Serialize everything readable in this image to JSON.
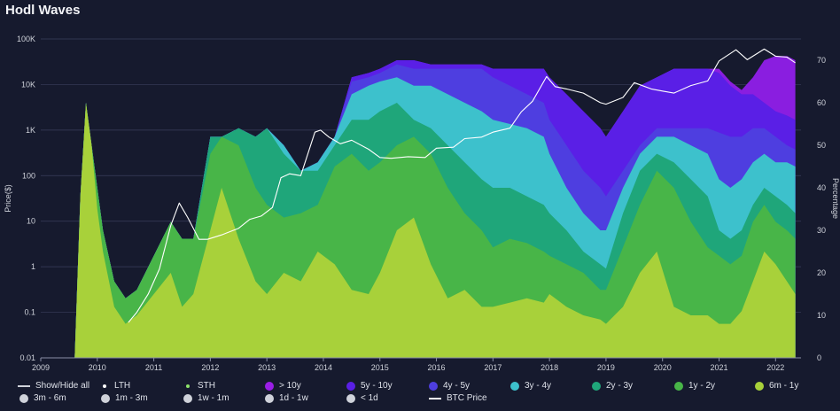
{
  "title": "Hodl Waves",
  "chart_data": {
    "type": "area",
    "title": "Hodl Waves",
    "ylabel_left": "Price($)",
    "ylabel_right": "Percentage",
    "y_left_scale": "log",
    "y_left_range": [
      0.01,
      100000
    ],
    "y_left_ticks": [
      "0.01",
      "0.1",
      "1",
      "10",
      "100",
      "1K",
      "10K",
      "100K"
    ],
    "y_right_range": [
      0,
      75
    ],
    "y_right_ticks": [
      "0",
      "10",
      "20",
      "30",
      "40",
      "50",
      "60",
      "70"
    ],
    "x_range": [
      2009,
      2022.45
    ],
    "x_ticks": [
      "2009",
      "2010",
      "2011",
      "2012",
      "2013",
      "2014",
      "2015",
      "2016",
      "2017",
      "2018",
      "2019",
      "2020",
      "2021",
      "2022"
    ],
    "grid": true,
    "legend_position": "bottom",
    "x": [
      2009.6,
      2009.7,
      2009.8,
      2009.9,
      2010.0,
      2010.1,
      2010.3,
      2010.5,
      2010.7,
      2011.0,
      2011.3,
      2011.5,
      2011.7,
      2012.0,
      2012.2,
      2012.5,
      2012.8,
      2013.0,
      2013.3,
      2013.6,
      2013.9,
      2014.2,
      2014.5,
      2014.8,
      2015.0,
      2015.3,
      2015.6,
      2015.9,
      2016.2,
      2016.5,
      2016.8,
      2017.0,
      2017.3,
      2017.6,
      2017.9,
      2018.0,
      2018.3,
      2018.6,
      2018.9,
      2019.0,
      2019.3,
      2019.6,
      2019.9,
      2020.2,
      2020.5,
      2020.8,
      2021.0,
      2021.2,
      2021.4,
      2021.6,
      2021.8,
      2022.0,
      2022.2,
      2022.35
    ],
    "series": [
      {
        "name": "6m - 1y",
        "color": "#a8d13a",
        "values": [
          0,
          38,
          60,
          50,
          35,
          25,
          12,
          8,
          10,
          15,
          20,
          12,
          15,
          30,
          40,
          28,
          18,
          15,
          20,
          18,
          25,
          22,
          16,
          15,
          20,
          30,
          33,
          22,
          14,
          16,
          12,
          12,
          13,
          14,
          13,
          15,
          12,
          10,
          9,
          8,
          12,
          20,
          25,
          12,
          10,
          10,
          8,
          8,
          11,
          18,
          25,
          22,
          18,
          15
        ]
      },
      {
        "name": "1y - 2y",
        "color": "#48b548",
        "values": [
          0,
          38,
          60,
          50,
          40,
          30,
          18,
          14,
          16,
          24,
          32,
          28,
          28,
          48,
          52,
          50,
          40,
          36,
          33,
          34,
          36,
          45,
          48,
          44,
          46,
          50,
          52,
          48,
          40,
          34,
          30,
          26,
          28,
          27,
          25,
          24,
          22,
          20,
          16,
          16,
          26,
          36,
          44,
          40,
          32,
          26,
          24,
          22,
          24,
          32,
          36,
          32,
          30,
          28
        ]
      },
      {
        "name": "2y - 3y",
        "color": "#1fa67a",
        "values": [
          0,
          38,
          60,
          50,
          40,
          30,
          18,
          14,
          16,
          24,
          32,
          28,
          28,
          52,
          52,
          54,
          52,
          54,
          48,
          44,
          44,
          50,
          56,
          56,
          58,
          60,
          56,
          54,
          50,
          46,
          42,
          40,
          40,
          38,
          36,
          34,
          30,
          25,
          22,
          21,
          34,
          44,
          48,
          46,
          42,
          38,
          30,
          28,
          30,
          36,
          40,
          38,
          36,
          34
        ]
      },
      {
        "name": "3y - 4y",
        "color": "#3dc1cc",
        "values": [
          0,
          38,
          60,
          50,
          40,
          30,
          18,
          14,
          16,
          24,
          32,
          28,
          28,
          52,
          52,
          54,
          52,
          54,
          50,
          44,
          46,
          52,
          62,
          64,
          65,
          66,
          64,
          64,
          62,
          60,
          58,
          56,
          55,
          54,
          52,
          48,
          40,
          34,
          30,
          30,
          40,
          48,
          52,
          52,
          50,
          48,
          42,
          40,
          42,
          46,
          48,
          46,
          46,
          45
        ]
      },
      {
        "name": "4y - 5y",
        "color": "#4e3ee0",
        "values": [
          0,
          38,
          60,
          50,
          40,
          30,
          18,
          14,
          16,
          24,
          32,
          28,
          28,
          52,
          52,
          54,
          52,
          54,
          50,
          44,
          46,
          52,
          65,
          66,
          67,
          69,
          68,
          68,
          68,
          68,
          68,
          66,
          64,
          62,
          60,
          56,
          50,
          44,
          40,
          38,
          44,
          50,
          54,
          54,
          54,
          54,
          53,
          52,
          52,
          54,
          54,
          52,
          50,
          49
        ]
      },
      {
        "name": "5y - 10y",
        "color": "#5a1fe6",
        "values": [
          0,
          38,
          60,
          50,
          40,
          30,
          18,
          14,
          16,
          24,
          32,
          28,
          28,
          52,
          52,
          54,
          52,
          54,
          50,
          44,
          46,
          52,
          66,
          67,
          68,
          70,
          70,
          69,
          69,
          69,
          69,
          68,
          68,
          68,
          68,
          66,
          62,
          58,
          54,
          52,
          58,
          64,
          66,
          68,
          68,
          68,
          67,
          64,
          62,
          62,
          60,
          58,
          57,
          56
        ]
      },
      {
        "name": "> 10y",
        "color": "#8a1ee0",
        "values": [
          0,
          38,
          60,
          50,
          40,
          30,
          18,
          14,
          16,
          24,
          32,
          28,
          28,
          52,
          52,
          54,
          52,
          54,
          50,
          44,
          46,
          52,
          66,
          67,
          68,
          70,
          70,
          69,
          69,
          69,
          69,
          68,
          68,
          68,
          68,
          66,
          62,
          58,
          54,
          52,
          58,
          64,
          66,
          68,
          68,
          68,
          68,
          65,
          63,
          66,
          70,
          71,
          71,
          70
        ]
      }
    ],
    "price_series": {
      "name": "BTC Price",
      "color": "#ffffff",
      "x": [
        2010.55,
        2010.7,
        2010.9,
        2011.1,
        2011.3,
        2011.45,
        2011.6,
        2011.8,
        2011.95,
        2012.2,
        2012.5,
        2012.7,
        2012.9,
        2013.1,
        2013.25,
        2013.4,
        2013.6,
        2013.85,
        2013.95,
        2014.1,
        2014.3,
        2014.5,
        2014.8,
        2015.0,
        2015.2,
        2015.5,
        2015.8,
        2016.0,
        2016.3,
        2016.5,
        2016.8,
        2017.0,
        2017.3,
        2017.5,
        2017.7,
        2017.95,
        2018.1,
        2018.3,
        2018.6,
        2018.9,
        2019.0,
        2019.3,
        2019.5,
        2019.8,
        2020.0,
        2020.2,
        2020.5,
        2020.8,
        2021.0,
        2021.3,
        2021.5,
        2021.8,
        2022.0,
        2022.2,
        2022.35
      ],
      "values": [
        0.06,
        0.1,
        0.25,
        0.9,
        8,
        25,
        12,
        4,
        4,
        5,
        7,
        11,
        13,
        20,
        90,
        110,
        100,
        900,
        1000,
        700,
        500,
        600,
        380,
        250,
        240,
        260,
        250,
        400,
        420,
        650,
        700,
        900,
        1100,
        2500,
        4300,
        15000,
        9000,
        8000,
        6500,
        4000,
        3700,
        5200,
        11000,
        8000,
        7200,
        6500,
        9500,
        12000,
        33000,
        58000,
        35000,
        60000,
        42000,
        40000,
        30000
      ]
    }
  },
  "legend": {
    "show_hide": "Show/Hide all",
    "lth": "LTH",
    "sth": "STH",
    "gt10y": "> 10y",
    "y5_10": "5y - 10y",
    "y4_5": "4y - 5y",
    "y3_4": "3y - 4y",
    "y2_3": "2y - 3y",
    "y1_2": "1y - 2y",
    "m6_1y": "6m - 1y",
    "m3_6": "3m - 6m",
    "m1_3": "1m - 3m",
    "w1_1m": "1w - 1m",
    "d1_1w": "1d - 1w",
    "lt1d": "< 1d",
    "btc_price": "BTC Price"
  },
  "legend_colors": {
    "gt10y": "#9a1ee6",
    "y5_10": "#5a1fe6",
    "y4_5": "#4e3ee0",
    "y3_4": "#3dc1cc",
    "y2_3": "#1fa67a",
    "y1_2": "#48b548",
    "m6_1y": "#a8d13a",
    "lth": "#ffffff",
    "sth": "#8de36b",
    "inactive": "#cfd2da"
  }
}
